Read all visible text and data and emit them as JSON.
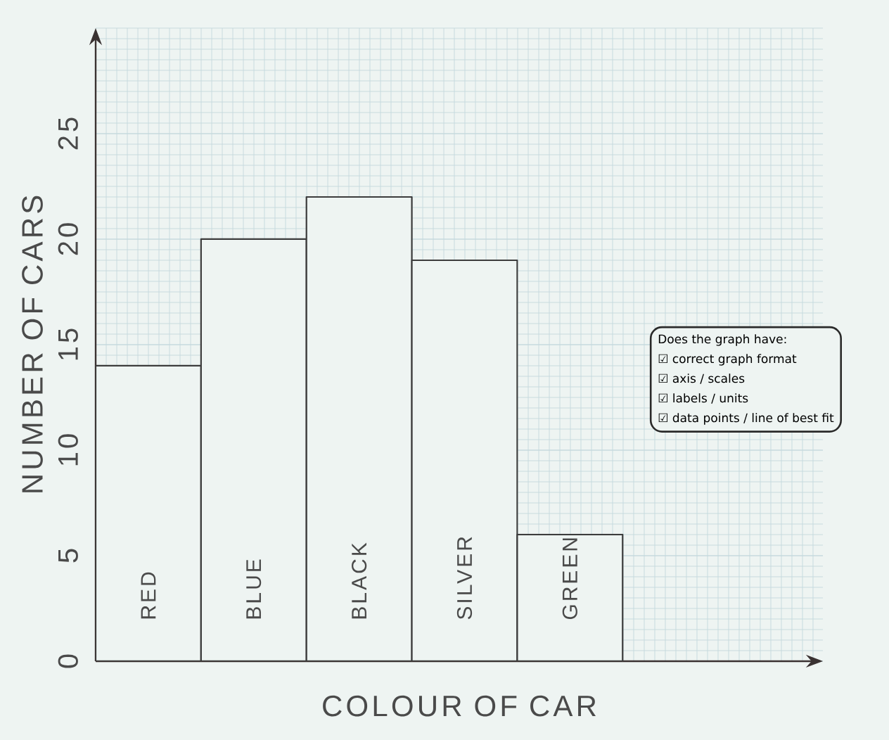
{
  "chart_data": {
    "type": "bar",
    "categories": [
      "RED",
      "BLUE",
      "BLACK",
      "SILVER",
      "GREEN"
    ],
    "values": [
      14,
      20,
      22,
      19,
      6
    ],
    "color": "#3c3c3c",
    "ylim": [
      0,
      30
    ],
    "yticks": [
      0,
      5,
      10,
      15,
      20,
      25
    ],
    "xlabel": "COLOUR OF CAR",
    "ylabel": "NUMBER OF CARS",
    "grid": true,
    "annotations": [
      "Does the graph have:",
      "☑ correct graph format",
      "☑ axis / scales",
      "☑ labels / units",
      "☑ data points / line of best fit"
    ]
  }
}
